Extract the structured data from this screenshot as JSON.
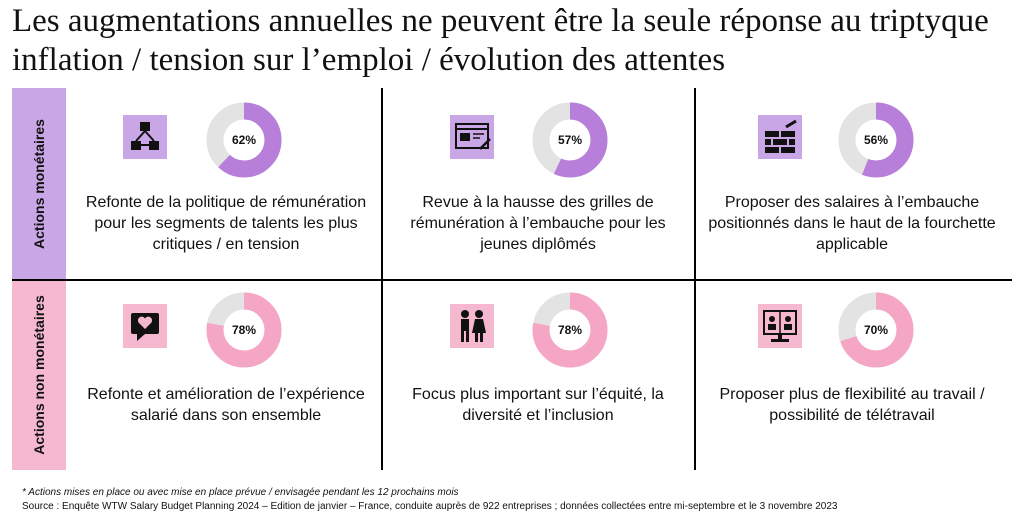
{
  "title": "Les augmentations annuelles ne peuvent être la seule réponse au triptyque inflation / tension sur l’emploi / évolution des attentes",
  "rows": [
    {
      "label": "Actions monétaires",
      "color": "#c9a7e6"
    },
    {
      "label": "Actions non monétaires",
      "color": "#f5b8cf"
    }
  ],
  "chart_data": {
    "type": "donut",
    "value_unit": "%",
    "track_color": "#e3e3e3",
    "items": [
      {
        "row": "Actions monétaires",
        "value": 62,
        "label": "62%",
        "color": "#b77fd9",
        "icon": "blocks-network-icon",
        "text": "Refonte de la politique de rémunération pour les segments de talents les plus critiques / en tension"
      },
      {
        "row": "Actions monétaires",
        "value": 57,
        "label": "57%",
        "color": "#b77fd9",
        "icon": "browser-edit-icon",
        "text": "Revue à la hausse des grilles de rémunération à l’embauche pour les jeunes diplômés"
      },
      {
        "row": "Actions monétaires",
        "value": 56,
        "label": "56%",
        "color": "#b77fd9",
        "icon": "brick-wall-icon",
        "text": "Proposer des salaires à l’embauche positionnés dans le haut de la fourchette applicable"
      },
      {
        "row": "Actions non monétaires",
        "value": 78,
        "label": "78%",
        "color": "#f4a6c4",
        "icon": "heart-chat-icon",
        "text": "Refonte et amélioration de l’expérience salarié dans son ensemble"
      },
      {
        "row": "Actions non monétaires",
        "value": 78,
        "label": "78%",
        "color": "#f4a6c4",
        "icon": "people-icon",
        "text": "Focus plus important sur l’équité, la diversité et l’inclusion"
      },
      {
        "row": "Actions non monétaires",
        "value": 70,
        "label": "70%",
        "color": "#f4a6c4",
        "icon": "video-call-icon",
        "text": "Proposer plus de flexibilité au travail / possibilité de télétravail"
      }
    ]
  },
  "footnote": "* Actions mises en place ou avec mise en place prévue / envisagée pendant les 12 prochains mois",
  "source": "Source : Enquête WTW Salary Budget Planning 2024 – Edition de janvier – France, conduite auprès de 922 entreprises ; données collectées entre mi-septembre et le 3 novembre 2023"
}
